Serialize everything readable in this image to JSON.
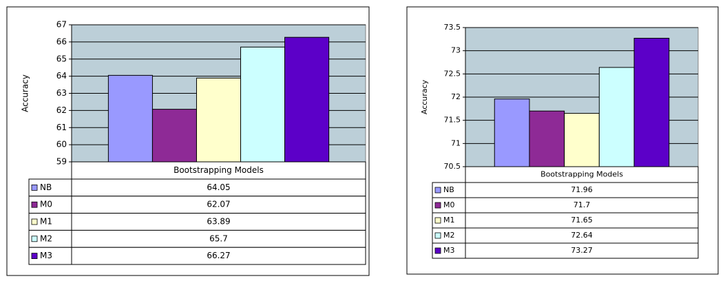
{
  "chart_data": [
    {
      "type": "bar",
      "ylabel": "Accuracy",
      "xlabel": "Bootstrapping Models",
      "ylim": [
        59,
        67
      ],
      "yticks": [
        59,
        60,
        61,
        62,
        63,
        64,
        65,
        66,
        67
      ],
      "grid": true,
      "series": [
        {
          "name": "NB",
          "color": "#9999ff",
          "values": [
            64.05
          ]
        },
        {
          "name": "M0",
          "color": "#8e2a96",
          "values": [
            62.07
          ]
        },
        {
          "name": "M1",
          "color": "#ffffcc",
          "values": [
            63.89
          ]
        },
        {
          "name": "M2",
          "color": "#ccffff",
          "values": [
            65.7
          ]
        },
        {
          "name": "M3",
          "color": "#5c00c8",
          "values": [
            66.27
          ]
        }
      ]
    },
    {
      "type": "bar",
      "ylabel": "Accuracy",
      "xlabel": "Bootstrapping Models",
      "ylim": [
        70.5,
        73.5
      ],
      "yticks": [
        70.5,
        71,
        71.5,
        72,
        72.5,
        73,
        73.5
      ],
      "grid": true,
      "series": [
        {
          "name": "NB",
          "color": "#9999ff",
          "values": [
            71.96
          ]
        },
        {
          "name": "M0",
          "color": "#8e2a96",
          "values": [
            71.7
          ]
        },
        {
          "name": "M1",
          "color": "#ffffcc",
          "values": [
            71.65
          ]
        },
        {
          "name": "M2",
          "color": "#ccffff",
          "values": [
            72.64
          ]
        },
        {
          "name": "M3",
          "color": "#5c00c8",
          "values": [
            73.27
          ]
        }
      ]
    }
  ]
}
